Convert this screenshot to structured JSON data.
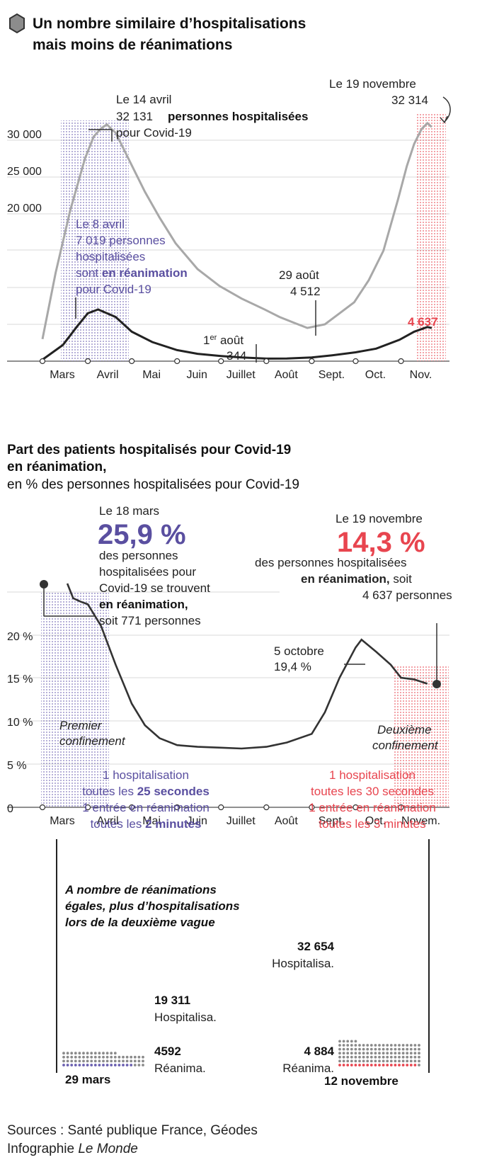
{
  "colors": {
    "purple": "#5a4fa0",
    "red": "#e8454f",
    "grey_line": "#a8a8a8",
    "dark_line": "#222222",
    "dot_grey": "#8a8a8a",
    "dot_purple": "#6a5fb0",
    "dot_red": "#e8454f"
  },
  "section1": {
    "icon": "hexagon-icon",
    "title_line1": "Un nombre similaire d’hospitalisations",
    "title_line2": "mais moins de réanimations",
    "annotations": {
      "avril14_line1": "Le 14 avril",
      "avril14_value": "32 131",
      "avril14_bold": "personnes hospitalisées",
      "avril14_line3": "pour Covid-19",
      "nov19_line1": "Le 19 novembre",
      "nov19_value": "32 314",
      "avril8_line1": "Le 8 avril",
      "avril8_line2": "7 019  personnes",
      "avril8_line3": "hospitalisées",
      "avril8_line4a": "sont ",
      "avril8_line4b": "en réanimation",
      "avril8_line5": "pour Covid-19",
      "aout29_line1": "29 août",
      "aout29_line2": "4 512",
      "aout1_line1": "1",
      "aout1_sup": "er",
      "aout1_line1b": " août",
      "aout1_line2": "344",
      "nov_rea": "4 637"
    }
  },
  "section2": {
    "title_line1": "Part des patients hospitalisés pour Covid-19",
    "title_line2": "en réanimation,",
    "subtitle": "en % des personnes hospitalisées pour Covid-19",
    "mars18": {
      "line1": "Le 18 mars",
      "big": "25,9 %",
      "line2": "des personnes",
      "line3": "hospitalisées pour",
      "line4": "Covid-19 se trouvent",
      "line5": "en réanimation,",
      "line6": "soit 771 personnes"
    },
    "nov19": {
      "line1": "Le 19 novembre",
      "big": "14,3 %",
      "line2": "des personnes hospitalisées",
      "line3a": "en réanimation,",
      "line3b": " soit",
      "line4": "4 637 personnes"
    },
    "oct5_line1": "5 octobre",
    "oct5_line2": "19,4 %",
    "premier_line1": "Premier",
    "premier_line2": "confinement",
    "deuxieme_line1": "Deuxième",
    "deuxieme_line2": "confinement",
    "left_rate": {
      "l1": "1 hospitalisation",
      "l2a": "toutes les ",
      "l2b": "25 secondes",
      "l3": "1 entrée en réanimation",
      "l4a": "toutes les ",
      "l4b": "2 minutes"
    },
    "right_rate": {
      "l1": "1 hospitalisation",
      "l2": "toutes les 30 secondes",
      "l3": "1 entrée en réanimation",
      "l4": "toutes les 3 minutes"
    }
  },
  "section3": {
    "title_line1": "A nombre de réanimations",
    "title_line2": "égales, plus d’hospitalisations",
    "title_line3": "lors de la deuxième vague",
    "left": {
      "hosp_value": "19 311",
      "hosp_label": "Hospitalisa.",
      "rea_value": "4592",
      "rea_label": "Réanima.",
      "date": "29 mars"
    },
    "right": {
      "hosp_value": "32 654",
      "hosp_label": "Hospitalisa.",
      "rea_value": "4 884",
      "rea_label": "Réanima.",
      "date": "12 novembre"
    }
  },
  "sources": {
    "line1": "Sources : Santé publique France, Géodes",
    "line2a": "Infographie ",
    "line2b": "Le Monde"
  },
  "chart_data": [
    {
      "type": "line",
      "title": "Un nombre similaire d’hospitalisations mais moins de réanimations",
      "x_tick_labels": [
        "Mars",
        "Avril",
        "Mai",
        "Juin",
        "Juillet",
        "Août",
        "Sept.",
        "Oct.",
        "Nov."
      ],
      "y_tick_labels": [
        "20 000",
        "25 000",
        "30 000"
      ],
      "ylim": [
        0,
        35000
      ],
      "series": [
        {
          "name": "personnes hospitalisées",
          "x": [
            "2020-03-01",
            "2020-03-10",
            "2020-03-20",
            "2020-03-30",
            "2020-04-05",
            "2020-04-10",
            "2020-04-14",
            "2020-04-20",
            "2020-04-30",
            "2020-05-10",
            "2020-05-20",
            "2020-05-31",
            "2020-06-15",
            "2020-06-30",
            "2020-07-15",
            "2020-07-31",
            "2020-08-10",
            "2020-08-20",
            "2020-08-29",
            "2020-09-10",
            "2020-09-20",
            "2020-09-30",
            "2020-10-10",
            "2020-10-20",
            "2020-10-30",
            "2020-11-05",
            "2020-11-10",
            "2020-11-15",
            "2020-11-19",
            "2020-11-22"
          ],
          "y": [
            3000,
            12000,
            20500,
            27500,
            30500,
            31600,
            32131,
            31000,
            27000,
            23000,
            19500,
            16000,
            12500,
            10200,
            8500,
            7000,
            6000,
            5200,
            4512,
            5000,
            6500,
            8000,
            11000,
            15000,
            22000,
            26500,
            29500,
            31500,
            32314,
            31800
          ]
        },
        {
          "name": "en réanimation",
          "x": [
            "2020-03-01",
            "2020-03-15",
            "2020-03-25",
            "2020-04-01",
            "2020-04-08",
            "2020-04-20",
            "2020-05-01",
            "2020-05-15",
            "2020-06-01",
            "2020-06-15",
            "2020-07-01",
            "2020-07-15",
            "2020-08-01",
            "2020-08-15",
            "2020-09-01",
            "2020-09-15",
            "2020-10-01",
            "2020-10-15",
            "2020-10-31",
            "2020-11-10",
            "2020-11-19",
            "2020-11-22"
          ],
          "y": [
            200,
            2200,
            4800,
            6500,
            7019,
            6000,
            4000,
            2600,
            1500,
            1000,
            700,
            500,
            344,
            370,
            500,
            800,
            1200,
            1700,
            2900,
            4000,
            4637,
            4500
          ]
        }
      ]
    },
    {
      "type": "line",
      "title": "Part des patients hospitalisés pour Covid-19 en réanimation,",
      "subtitle": "en % des personnes hospitalisées pour Covid-19",
      "x_tick_labels": [
        "Mars",
        "Avril",
        "Mai",
        "Juin",
        "Juillet",
        "Août",
        "Sept.",
        "Oct.",
        "Novem."
      ],
      "y_tick_labels": [
        "0",
        "5 %",
        "10 %",
        "15 %",
        "20 %"
      ],
      "ylim": [
        0,
        27
      ],
      "series": [
        {
          "name": "part en réanimation",
          "x": [
            "2020-03-18",
            "2020-03-22",
            "2020-03-27",
            "2020-04-01",
            "2020-04-10",
            "2020-04-20",
            "2020-05-01",
            "2020-05-10",
            "2020-05-20",
            "2020-06-01",
            "2020-06-15",
            "2020-07-01",
            "2020-07-15",
            "2020-08-01",
            "2020-08-15",
            "2020-09-01",
            "2020-09-10",
            "2020-09-20",
            "2020-10-01",
            "2020-10-05",
            "2020-10-15",
            "2020-10-25",
            "2020-11-01",
            "2020-11-10",
            "2020-11-19"
          ],
          "y": [
            25.9,
            24.2,
            23.8,
            23.5,
            21.0,
            16.5,
            12.0,
            9.5,
            8.0,
            7.2,
            7.0,
            6.9,
            6.8,
            7.0,
            7.5,
            8.5,
            11.0,
            15.0,
            18.5,
            19.4,
            18.0,
            16.5,
            15.0,
            14.8,
            14.3
          ]
        }
      ]
    },
    {
      "type": "bar",
      "title": "A nombre de réanimations égales, plus d’hospitalisations lors de la deuxième vague",
      "categories": [
        "29 mars",
        "12 novembre"
      ],
      "series": [
        {
          "name": "Hospitalisa.",
          "values": [
            19311,
            32654
          ]
        },
        {
          "name": "Réanima.",
          "values": [
            4592,
            4884
          ]
        }
      ]
    }
  ]
}
